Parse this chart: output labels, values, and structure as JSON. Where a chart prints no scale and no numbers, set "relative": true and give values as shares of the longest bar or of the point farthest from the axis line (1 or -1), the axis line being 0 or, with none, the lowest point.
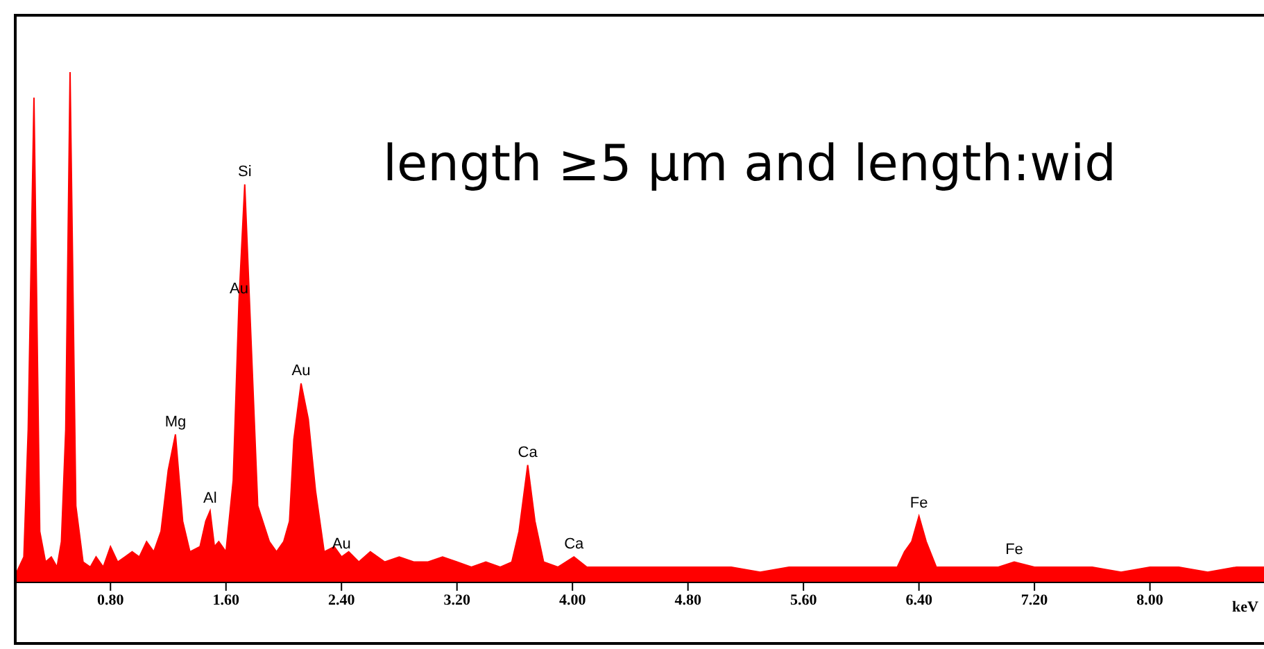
{
  "chart_data": {
    "type": "area",
    "title": "length ≥5 µm and length:wid",
    "xlabel": "keV",
    "relative": true,
    "x": [
      0.15,
      0.2,
      0.23,
      0.27,
      0.31,
      0.35,
      0.39,
      0.43,
      0.46,
      0.49,
      0.52,
      0.56,
      0.61,
      0.66,
      0.7,
      0.75,
      0.8,
      0.85,
      0.9,
      0.95,
      1.0,
      1.05,
      1.1,
      1.15,
      1.2,
      1.25,
      1.3,
      1.35,
      1.42,
      1.46,
      1.49,
      1.52,
      1.55,
      1.6,
      1.65,
      1.69,
      1.73,
      1.77,
      1.82,
      1.9,
      1.95,
      2.0,
      2.04,
      2.07,
      2.12,
      2.17,
      2.22,
      2.28,
      2.35,
      2.4,
      2.45,
      2.52,
      2.6,
      2.7,
      2.8,
      2.9,
      3.0,
      3.1,
      3.2,
      3.3,
      3.4,
      3.5,
      3.58,
      3.63,
      3.69,
      3.74,
      3.8,
      3.9,
      4.01,
      4.1,
      4.2,
      4.35,
      4.5,
      4.7,
      4.9,
      5.1,
      5.3,
      5.5,
      5.7,
      5.9,
      6.1,
      6.25,
      6.3,
      6.35,
      6.4,
      6.45,
      6.52,
      6.6,
      6.8,
      6.95,
      7.06,
      7.2,
      7.4,
      7.6,
      7.8,
      8.0,
      8.2,
      8.4,
      8.6,
      8.79
    ],
    "series": [
      {
        "color": "#ff0000",
        "values": [
          0.02,
          0.05,
          0.3,
          0.95,
          0.1,
          0.04,
          0.05,
          0.03,
          0.08,
          0.3,
          1.0,
          0.15,
          0.04,
          0.03,
          0.05,
          0.03,
          0.07,
          0.04,
          0.05,
          0.06,
          0.05,
          0.08,
          0.06,
          0.1,
          0.22,
          0.29,
          0.12,
          0.06,
          0.07,
          0.12,
          0.14,
          0.07,
          0.08,
          0.06,
          0.2,
          0.55,
          0.78,
          0.5,
          0.15,
          0.08,
          0.06,
          0.08,
          0.12,
          0.28,
          0.39,
          0.32,
          0.18,
          0.06,
          0.07,
          0.05,
          0.06,
          0.04,
          0.06,
          0.04,
          0.05,
          0.04,
          0.04,
          0.05,
          0.04,
          0.03,
          0.04,
          0.03,
          0.04,
          0.1,
          0.23,
          0.12,
          0.04,
          0.03,
          0.05,
          0.03,
          0.03,
          0.03,
          0.03,
          0.03,
          0.03,
          0.03,
          0.02,
          0.03,
          0.03,
          0.03,
          0.03,
          0.03,
          0.06,
          0.08,
          0.13,
          0.08,
          0.03,
          0.03,
          0.03,
          0.03,
          0.04,
          0.03,
          0.03,
          0.03,
          0.02,
          0.03,
          0.03,
          0.02,
          0.03,
          0.03
        ]
      }
    ],
    "xlim": [
      0.15,
      8.79
    ],
    "xticks": [
      {
        "value": 0.8,
        "label": "0.80"
      },
      {
        "value": 1.6,
        "label": "1.60"
      },
      {
        "value": 2.4,
        "label": "2.40"
      },
      {
        "value": 3.2,
        "label": "3.20"
      },
      {
        "value": 4.0,
        "label": "4.00"
      },
      {
        "value": 4.8,
        "label": "4.80"
      },
      {
        "value": 5.6,
        "label": "5.60"
      },
      {
        "value": 6.4,
        "label": "6.40"
      },
      {
        "value": 7.2,
        "label": "7.20"
      },
      {
        "value": 8.0,
        "label": "8.00"
      }
    ],
    "annotations": [
      {
        "text": "Mg",
        "x": 1.25,
        "y": 0.29
      },
      {
        "text": "Al",
        "x": 1.49,
        "y": 0.14
      },
      {
        "text": "Si",
        "x": 1.73,
        "y": 0.78
      },
      {
        "text": "Au",
        "x": 1.69,
        "y": 0.55
      },
      {
        "text": "Au",
        "x": 2.12,
        "y": 0.39
      },
      {
        "text": "Au",
        "x": 2.4,
        "y": 0.05
      },
      {
        "text": "Ca",
        "x": 3.69,
        "y": 0.23
      },
      {
        "text": "Ca",
        "x": 4.01,
        "y": 0.05
      },
      {
        "text": "Fe",
        "x": 6.4,
        "y": 0.13
      },
      {
        "text": "Fe",
        "x": 7.06,
        "y": 0.04
      }
    ]
  }
}
